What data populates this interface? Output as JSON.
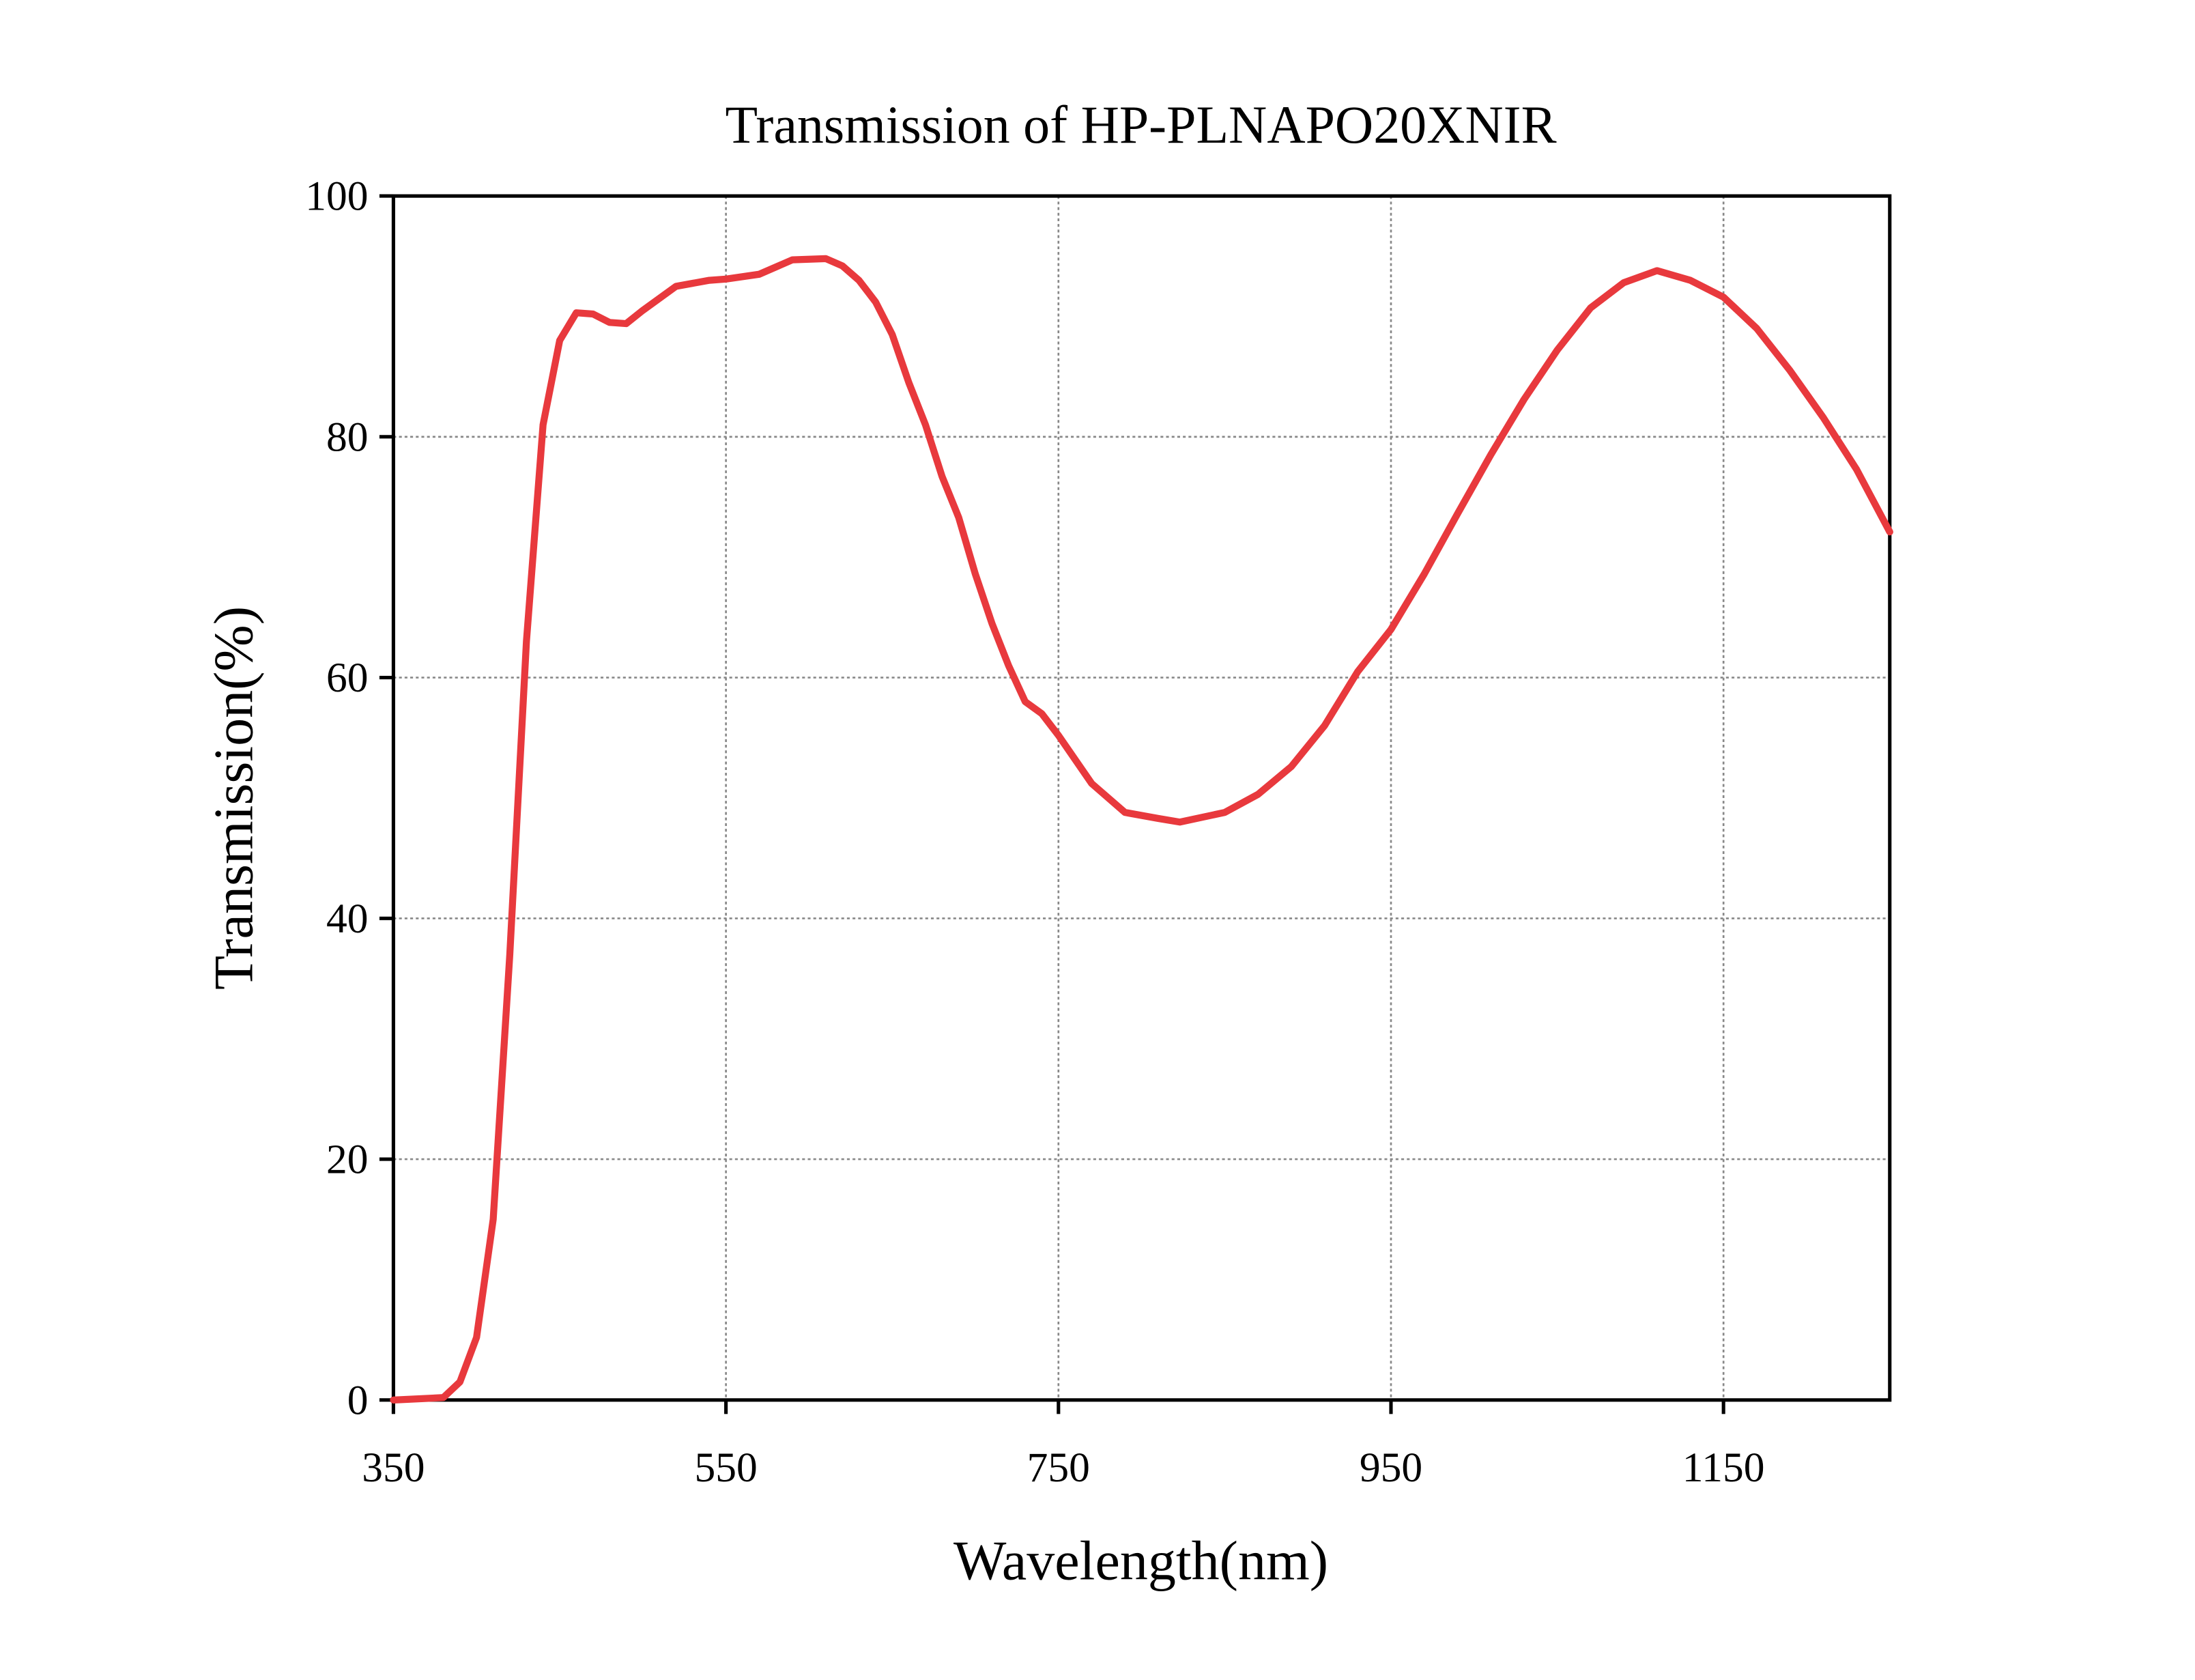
{
  "chart_data": {
    "type": "line",
    "title": "Transmission of HP-PLNAPO20XNIR",
    "x_label": "Wavelength(nm)",
    "y_label": "Transmission(%)",
    "xlim": [
      350,
      1250
    ],
    "xticks": [
      350,
      550,
      750,
      950,
      1150
    ],
    "ylim": [
      0,
      100
    ],
    "yticks": [
      0,
      20,
      40,
      60,
      80,
      100
    ],
    "grid": true,
    "series": [
      {
        "name": "Transmission",
        "color": "#e8393d",
        "x": [
          350,
          380,
          390,
          400,
          410,
          420,
          430,
          440,
          450,
          460,
          470,
          480,
          490,
          500,
          520,
          540,
          550,
          570,
          590,
          610,
          620,
          630,
          640,
          650,
          660,
          670,
          680,
          690,
          700,
          710,
          720,
          730,
          740,
          750,
          770,
          790,
          810,
          823,
          850,
          870,
          890,
          910,
          930,
          950,
          970,
          990,
          1010,
          1030,
          1050,
          1070,
          1090,
          1110,
          1130,
          1150,
          1170,
          1190,
          1210,
          1230,
          1250
        ],
        "values": [
          0,
          0.2,
          1.5,
          5.2,
          15,
          37,
          63,
          81,
          88,
          90.3,
          90.2,
          89.5,
          89.4,
          90.5,
          92.5,
          93,
          93.1,
          93.5,
          94.7,
          94.8,
          94.2,
          93,
          91.2,
          88.5,
          84.5,
          81,
          76.7,
          73.3,
          68.6,
          64.5,
          61,
          58,
          57,
          55.2,
          51.2,
          48.8,
          48.3,
          48,
          48.8,
          50.3,
          52.6,
          56,
          60.5,
          64,
          68.6,
          73.6,
          78.5,
          83.1,
          87.2,
          90.7,
          92.8,
          93.8,
          93,
          91.6,
          89,
          85.5,
          81.6,
          77.3,
          72.1
        ]
      }
    ]
  }
}
